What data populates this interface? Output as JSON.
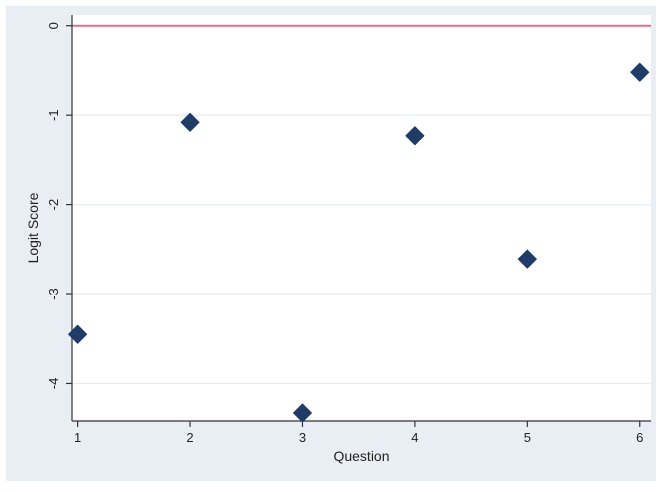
{
  "chart_data": {
    "type": "scatter",
    "title": "",
    "xlabel": "Question",
    "ylabel": "Logit Score",
    "xlim": [
      0.95,
      6.1
    ],
    "ylim": [
      -4.42,
      0.12
    ],
    "xticks": [
      1,
      2,
      3,
      4,
      5,
      6
    ],
    "xtick_labels": [
      "1",
      "2",
      "3",
      "4",
      "5",
      "6"
    ],
    "yticks": [
      0,
      -1,
      -2,
      -3,
      -4
    ],
    "ytick_labels": [
      "0",
      "-1",
      "-2",
      "-3",
      "-4"
    ],
    "grid": true,
    "reference_line": {
      "y": 0,
      "color": "#e0708a"
    },
    "marker": "diamond",
    "marker_color": "#1f3b66",
    "points": [
      {
        "x": 1,
        "y": -3.45
      },
      {
        "x": 2,
        "y": -1.08
      },
      {
        "x": 3,
        "y": -4.33
      },
      {
        "x": 4,
        "y": -1.23
      },
      {
        "x": 5,
        "y": -2.61
      },
      {
        "x": 6,
        "y": -0.52
      }
    ]
  },
  "colors": {
    "outer_background": "#e8eef4",
    "plot_background": "#ffffff",
    "grid": "#e6ebf0",
    "axis": "#333333"
  }
}
